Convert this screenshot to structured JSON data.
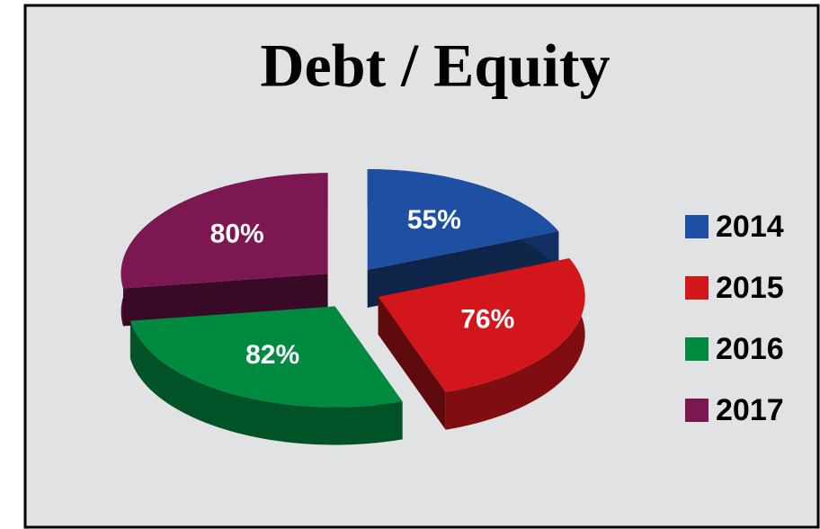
{
  "chart_data": {
    "type": "pie",
    "title": "Debt / Equity",
    "categories": [
      "2014",
      "2015",
      "2016",
      "2017"
    ],
    "values": [
      55,
      76,
      82,
      80
    ],
    "value_labels": [
      "55%",
      "76%",
      "82%",
      "80%"
    ],
    "colors": [
      "#1f4fa3",
      "#d3161c",
      "#008a40",
      "#7c1752"
    ],
    "legend": "right"
  }
}
